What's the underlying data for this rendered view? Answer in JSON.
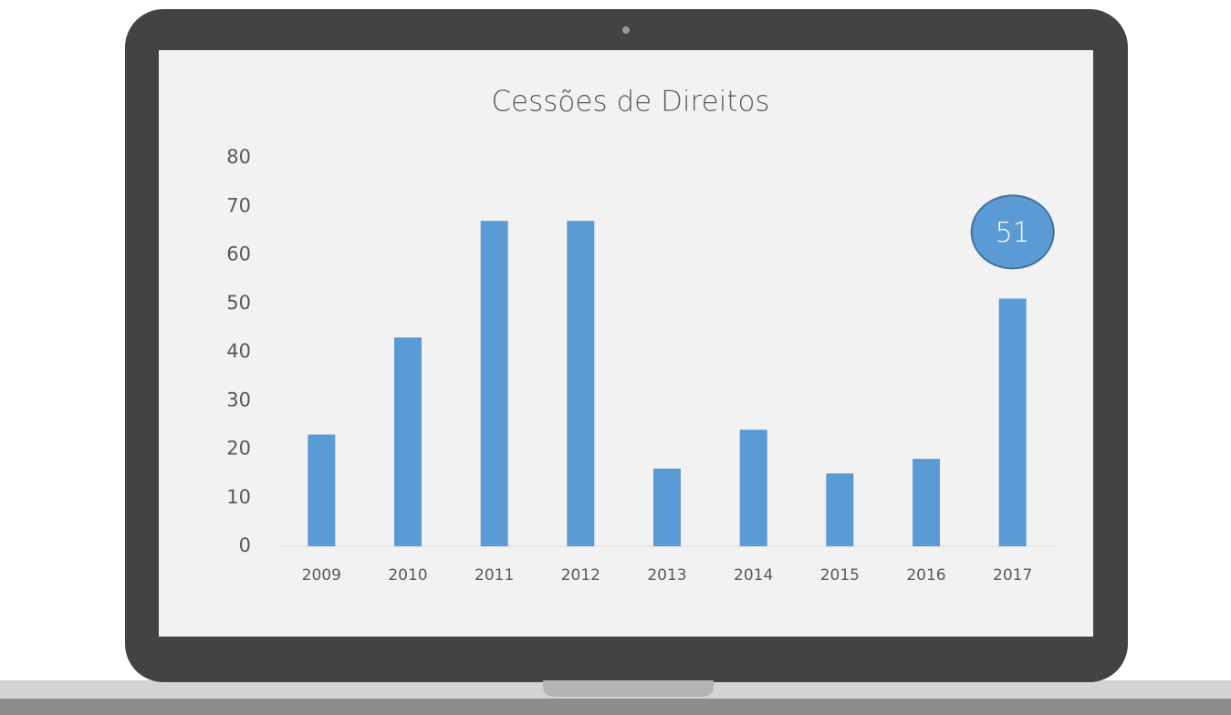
{
  "chart_data": {
    "type": "bar",
    "title": "Cessões de Direitos",
    "categories": [
      "2009",
      "2010",
      "2011",
      "2012",
      "2013",
      "2014",
      "2015",
      "2016",
      "2017"
    ],
    "values": [
      23,
      43,
      67,
      67,
      16,
      24,
      15,
      18,
      51
    ],
    "color": "#5b9bd5",
    "ylim": [
      0,
      80
    ],
    "yticks": [
      0,
      10,
      20,
      30,
      40,
      50,
      60,
      70,
      80
    ],
    "grid": false,
    "highlight_index": 8
  }
}
